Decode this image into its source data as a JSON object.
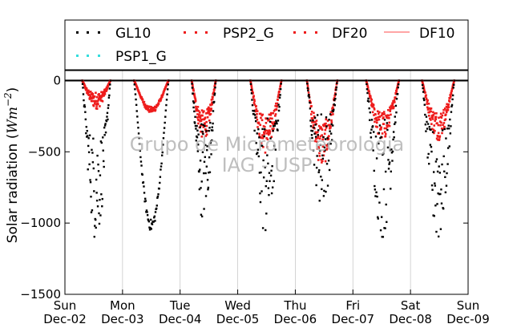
{
  "chart_data": {
    "type": "scatter",
    "ylabel": "Solar radiation (Wm⁻²)",
    "ylabel_parts": {
      "text": "Solar radiation (",
      "unit": "Wm",
      "exp": "−2",
      "close": ")"
    },
    "xlabel": "",
    "ylim": [
      -1500,
      70
    ],
    "xlim": [
      0,
      7
    ],
    "yticks": [
      0,
      -500,
      -1000,
      -1500
    ],
    "ytick_labels": [
      "0",
      "−500",
      "−1000",
      "−1500"
    ],
    "xticks": [
      0,
      1,
      2,
      3,
      4,
      5,
      6,
      7
    ],
    "xtick_labels": [
      [
        "Sun",
        "Dec-02"
      ],
      [
        "Mon",
        "Dec-03"
      ],
      [
        "Tue",
        "Dec-04"
      ],
      [
        "Wed",
        "Dec-05"
      ],
      [
        "Thu",
        "Dec-06"
      ],
      [
        "Fri",
        "Dec-07"
      ],
      [
        "Sat",
        "Dec-08"
      ],
      [
        "Sun",
        "Dec-09"
      ]
    ],
    "grid": "vertical",
    "legend_position": "top",
    "watermark": [
      "Grupo de Micrometeorologia",
      "IAG - USP"
    ],
    "series": [
      {
        "name": "GL10",
        "color": "#000000",
        "marker": "dot",
        "days": [
          {
            "start": 0.3,
            "end": 0.79,
            "peak": -1150,
            "noise": 0.7
          },
          {
            "start": 1.2,
            "end": 1.8,
            "peak": -1060,
            "noise": 0.08
          },
          {
            "start": 2.2,
            "end": 2.62,
            "peak": -1010,
            "noise": 0.75
          },
          {
            "start": 3.22,
            "end": 3.76,
            "peak": -1150,
            "noise": 0.8
          },
          {
            "start": 4.2,
            "end": 4.73,
            "peak": -920,
            "noise": 0.8
          },
          {
            "start": 5.23,
            "end": 5.8,
            "peak": -1120,
            "noise": 0.8
          },
          {
            "start": 6.2,
            "end": 6.76,
            "peak": -1200,
            "noise": 0.75
          }
        ]
      },
      {
        "name": "PSP2_G",
        "color": "#ee1c1c",
        "marker": "dot",
        "days": [
          {
            "start": 0.3,
            "end": 0.79,
            "peak": -200,
            "noise": 0.6
          },
          {
            "start": 1.2,
            "end": 1.8,
            "peak": -230,
            "noise": 0.2
          },
          {
            "start": 2.2,
            "end": 2.62,
            "peak": -420,
            "noise": 0.5
          },
          {
            "start": 3.22,
            "end": 3.76,
            "peak": -520,
            "noise": 0.55
          },
          {
            "start": 4.2,
            "end": 4.73,
            "peak": -620,
            "noise": 0.55
          },
          {
            "start": 5.23,
            "end": 5.8,
            "peak": -430,
            "noise": 0.5
          },
          {
            "start": 6.2,
            "end": 6.76,
            "peak": -420,
            "noise": 0.5
          }
        ]
      },
      {
        "name": "DF20",
        "color": "#ee1c1c",
        "marker": "dot"
      },
      {
        "name": "DF10",
        "color": "#ff6f6f",
        "marker": "line"
      },
      {
        "name": "PSP1_G",
        "color": "#33dddd",
        "marker": "dot"
      }
    ]
  }
}
